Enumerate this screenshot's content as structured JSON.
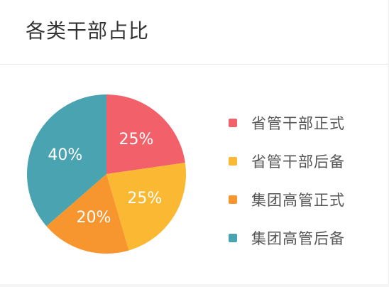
{
  "header": {
    "title": "各类干部占比"
  },
  "colors": {
    "red": "#f2606a",
    "yellow": "#fbb933",
    "orange": "#f7962f",
    "teal": "#4aa3b1"
  },
  "chart_data": {
    "type": "pie",
    "title": "各类干部占比",
    "slices": [
      {
        "label": "省管干部正式",
        "value": 25,
        "value_label": "25%",
        "color": "#f2606a"
      },
      {
        "label": "省管干部后备",
        "value": 25,
        "value_label": "25%",
        "color": "#fbb933"
      },
      {
        "label": "集团高管正式",
        "value": 20,
        "value_label": "20%",
        "color": "#f7962f"
      },
      {
        "label": "集团高管后备",
        "value": 40,
        "value_label": "40%",
        "color": "#4aa3b1"
      }
    ],
    "start": "top",
    "direction": "clockwise",
    "legend_position": "right"
  }
}
